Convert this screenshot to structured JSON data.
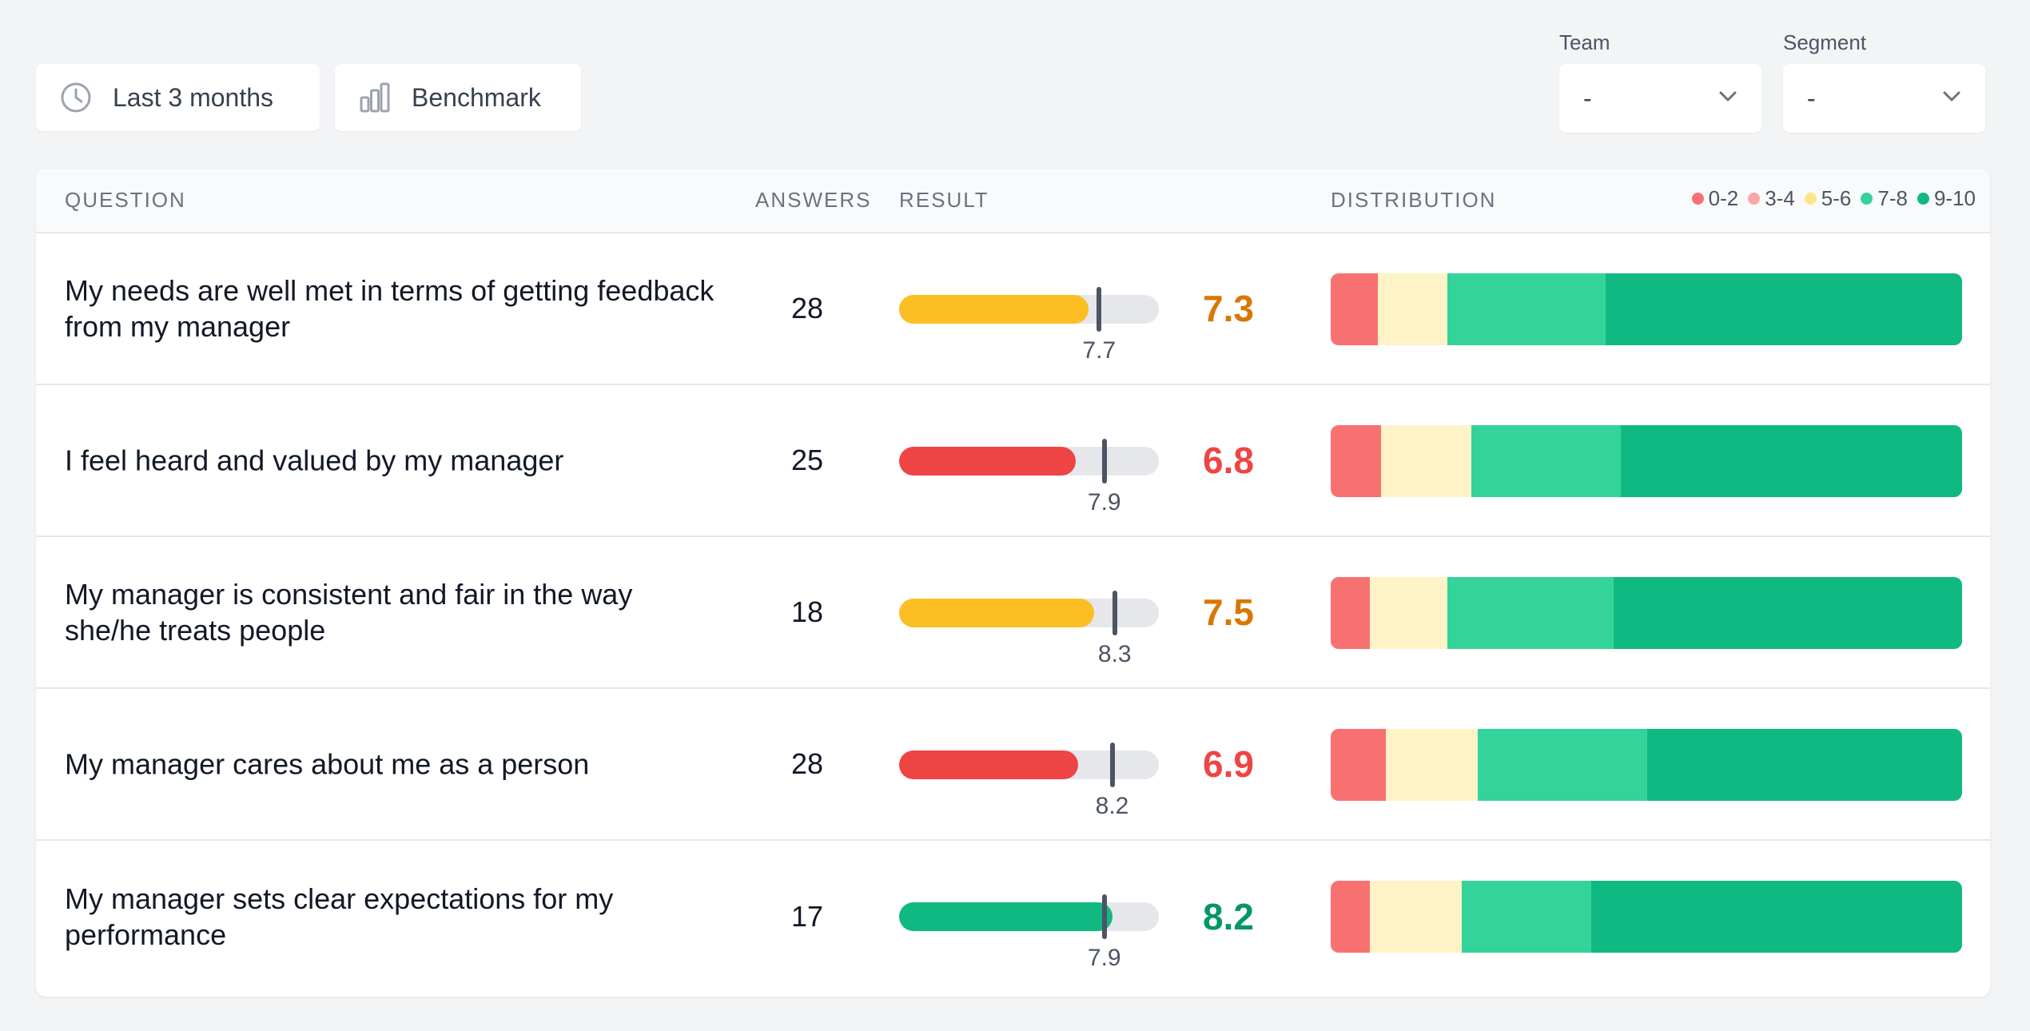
{
  "toolbar": {
    "range_label": "Last 3 months",
    "range_icon": "clock-icon",
    "benchmark_label": "Benchmark",
    "benchmark_icon": "bar-chart-icon"
  },
  "filters": {
    "team": {
      "label": "Team",
      "value": "-"
    },
    "segment": {
      "label": "Segment",
      "value": "-"
    }
  },
  "table": {
    "headers": {
      "question": "QUESTION",
      "answers": "ANSWERS",
      "result": "RESULT",
      "distribution": "DISTRIBUTION"
    },
    "legend": [
      {
        "label": "0-2",
        "color": "#f87171"
      },
      {
        "label": "3-4",
        "color": "#fca5a5"
      },
      {
        "label": "5-6",
        "color": "#fde68a"
      },
      {
        "label": "7-8",
        "color": "#34d399"
      },
      {
        "label": "9-10",
        "color": "#10b981"
      }
    ],
    "rows": [
      {
        "question": "My needs are well met in terms of getting feedback from my manager",
        "answers": "28",
        "score": "7.3",
        "score_value": 7.3,
        "score_color": "#d97706",
        "bar_color": "#fbbf24",
        "benchmark": "7.7",
        "benchmark_value": 7.7,
        "distribution": [
          {
            "range": "0-2",
            "share": 0.075,
            "color": "#f87171"
          },
          {
            "range": "5-6",
            "share": 0.11,
            "color": "#fef3c7"
          },
          {
            "range": "7-8",
            "share": 0.25,
            "color": "#34d399"
          },
          {
            "range": "9-10",
            "share": 0.565,
            "color": "#10b981"
          }
        ]
      },
      {
        "question": "I feel heard and valued by my manager",
        "answers": "25",
        "score": "6.8",
        "score_value": 6.8,
        "score_color": "#ef4444",
        "bar_color": "#ef4444",
        "benchmark": "7.9",
        "benchmark_value": 7.9,
        "distribution": [
          {
            "range": "0-2",
            "share": 0.08,
            "color": "#f87171"
          },
          {
            "range": "5-6",
            "share": 0.143,
            "color": "#fef3c7"
          },
          {
            "range": "7-8",
            "share": 0.237,
            "color": "#34d399"
          },
          {
            "range": "9-10",
            "share": 0.54,
            "color": "#10b981"
          }
        ]
      },
      {
        "question": "My manager is consistent and fair in the way she/he treats people",
        "answers": "18",
        "score": "7.5",
        "score_value": 7.5,
        "score_color": "#d97706",
        "bar_color": "#fbbf24",
        "benchmark": "8.3",
        "benchmark_value": 8.3,
        "distribution": [
          {
            "range": "0-2",
            "share": 0.062,
            "color": "#f87171"
          },
          {
            "range": "5-6",
            "share": 0.123,
            "color": "#fef3c7"
          },
          {
            "range": "7-8",
            "share": 0.263,
            "color": "#34d399"
          },
          {
            "range": "9-10",
            "share": 0.552,
            "color": "#10b981"
          }
        ]
      },
      {
        "question": "My manager cares about me as a person",
        "answers": "28",
        "score": "6.9",
        "score_value": 6.9,
        "score_color": "#ef4444",
        "bar_color": "#ef4444",
        "benchmark": "8.2",
        "benchmark_value": 8.2,
        "distribution": [
          {
            "range": "0-2",
            "share": 0.087,
            "color": "#f87171"
          },
          {
            "range": "5-6",
            "share": 0.146,
            "color": "#fef3c7"
          },
          {
            "range": "7-8",
            "share": 0.268,
            "color": "#34d399"
          },
          {
            "range": "9-10",
            "share": 0.499,
            "color": "#10b981"
          }
        ]
      },
      {
        "question": "My manager sets clear expectations for my performance",
        "answers": "17",
        "score": "8.2",
        "score_value": 8.2,
        "score_color": "#059669",
        "bar_color": "#10b981",
        "benchmark": "7.9",
        "benchmark_value": 7.9,
        "distribution": [
          {
            "range": "0-2",
            "share": 0.062,
            "color": "#f87171"
          },
          {
            "range": "5-6",
            "share": 0.146,
            "color": "#fef3c7"
          },
          {
            "range": "7-8",
            "share": 0.205,
            "color": "#34d399"
          },
          {
            "range": "9-10",
            "share": 0.587,
            "color": "#10b981"
          }
        ]
      }
    ]
  }
}
